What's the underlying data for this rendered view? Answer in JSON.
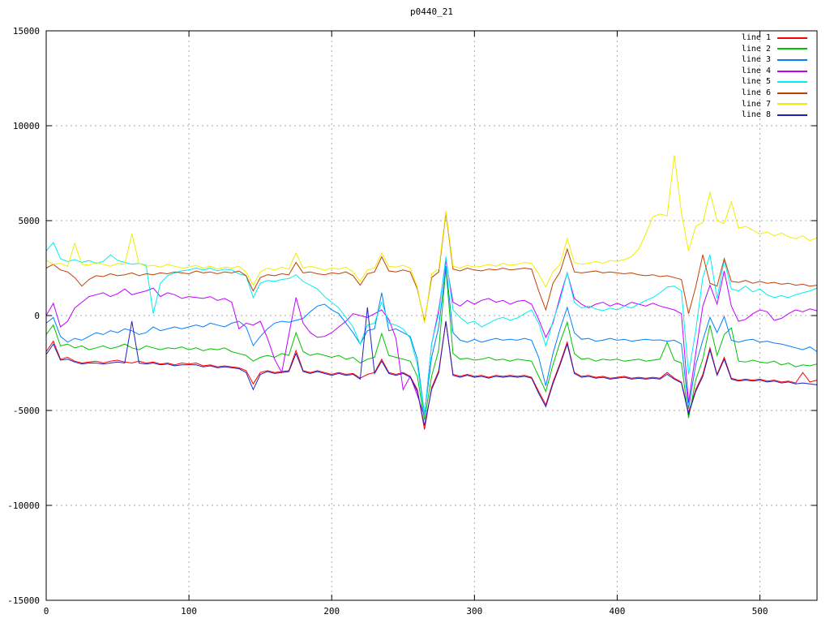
{
  "title": "p0440_21",
  "colors": {
    "background": "#ffffff",
    "border": "#000000",
    "grid": "#a8a8a8"
  },
  "chart_data": {
    "type": "line",
    "title": "p0440_21",
    "xlabel": "",
    "ylabel": "",
    "xlim": [
      0,
      540
    ],
    "ylim": [
      -15000,
      15000
    ],
    "xticks": [
      0,
      100,
      200,
      300,
      400,
      500
    ],
    "yticks": [
      -15000,
      -10000,
      -5000,
      0,
      5000,
      10000,
      15000
    ],
    "grid": true,
    "legend_position": "top-right",
    "x_start": 0,
    "x_step": 5,
    "series": [
      {
        "name": "line 1",
        "color": "#ff0000",
        "values": [
          -1900,
          -1350,
          -2300,
          -2200,
          -2400,
          -2500,
          -2450,
          -2400,
          -2500,
          -2400,
          -2350,
          -2450,
          -2500,
          -2400,
          -2500,
          -2450,
          -2550,
          -2500,
          -2600,
          -2500,
          -2550,
          -2500,
          -2650,
          -2600,
          -2700,
          -2650,
          -2700,
          -2750,
          -2900,
          -3600,
          -3000,
          -2900,
          -3000,
          -2950,
          -2900,
          -1840,
          -2900,
          -3000,
          -2900,
          -3000,
          -3100,
          -3000,
          -3100,
          -3050,
          -3300,
          -3100,
          -3000,
          -2300,
          -3000,
          -3100,
          -3000,
          -3200,
          -3900,
          -6000,
          -3800,
          -2900,
          -300,
          -3100,
          -3200,
          -3100,
          -3200,
          -3150,
          -3250,
          -3150,
          -3200,
          -3150,
          -3200,
          -3150,
          -3250,
          -4000,
          -4700,
          -3500,
          -2500,
          -1400,
          -3000,
          -3200,
          -3150,
          -3250,
          -3200,
          -3300,
          -3250,
          -3200,
          -3300,
          -3250,
          -3300,
          -3250,
          -3300,
          -3000,
          -3300,
          -3500,
          -5100,
          -3900,
          -3100,
          -1700,
          -3100,
          -2200,
          -3300,
          -3400,
          -3350,
          -3400,
          -3350,
          -3450,
          -3400,
          -3500,
          -3450,
          -3550,
          -3000,
          -3500,
          -3400
        ]
      },
      {
        "name": "line 2",
        "color": "#00c000",
        "values": [
          -1000,
          -500,
          -1600,
          -1500,
          -1700,
          -1600,
          -1800,
          -1700,
          -1600,
          -1750,
          -1650,
          -1500,
          -1700,
          -1800,
          -1600,
          -1700,
          -1800,
          -1700,
          -1750,
          -1650,
          -1800,
          -1700,
          -1850,
          -1750,
          -1800,
          -1700,
          -1900,
          -2000,
          -2100,
          -2400,
          -2200,
          -2100,
          -2200,
          -2000,
          -2100,
          -900,
          -1900,
          -2100,
          -2000,
          -2100,
          -2200,
          -2100,
          -2300,
          -2200,
          -2500,
          -2300,
          -2200,
          -950,
          -2100,
          -2200,
          -2300,
          -2400,
          -3200,
          -5500,
          -3200,
          -1800,
          2500,
          -2000,
          -2300,
          -2250,
          -2350,
          -2300,
          -2200,
          -2350,
          -2300,
          -2400,
          -2300,
          -2350,
          -2400,
          -3200,
          -4000,
          -2600,
          -1400,
          -350,
          -2000,
          -2300,
          -2250,
          -2400,
          -2300,
          -2350,
          -2300,
          -2400,
          -2350,
          -2300,
          -2400,
          -2350,
          -2300,
          -1400,
          -2350,
          -2500,
          -5400,
          -3400,
          -2300,
          -500,
          -2100,
          -1000,
          -650,
          -2400,
          -2450,
          -2350,
          -2450,
          -2500,
          -2400,
          -2600,
          -2500,
          -2700,
          -2600,
          -2650,
          -2550
        ]
      },
      {
        "name": "line 3",
        "color": "#0080ff",
        "values": [
          -400,
          -100,
          -1100,
          -1400,
          -1200,
          -1300,
          -1100,
          -900,
          -1000,
          -800,
          -900,
          -700,
          -800,
          -1000,
          -900,
          -600,
          -800,
          -700,
          -600,
          -700,
          -600,
          -500,
          -600,
          -400,
          -500,
          -600,
          -400,
          -300,
          -600,
          -1580,
          -1100,
          -700,
          -400,
          -300,
          -350,
          -250,
          -150,
          200,
          500,
          600,
          300,
          100,
          -400,
          -900,
          -1500,
          -800,
          -700,
          1200,
          -800,
          -700,
          -900,
          -1100,
          -2300,
          -5200,
          -2200,
          -600,
          2600,
          -900,
          -1300,
          -1400,
          -1250,
          -1400,
          -1300,
          -1200,
          -1300,
          -1250,
          -1300,
          -1200,
          -1300,
          -2200,
          -3700,
          -2000,
          -700,
          430,
          -900,
          -1250,
          -1200,
          -1350,
          -1300,
          -1200,
          -1300,
          -1250,
          -1350,
          -1300,
          -1250,
          -1300,
          -1280,
          -1350,
          -1300,
          -1500,
          -4900,
          -2600,
          -1300,
          -100,
          -900,
          -50,
          -1300,
          -1400,
          -1300,
          -1250,
          -1400,
          -1350,
          -1450,
          -1500,
          -1600,
          -1700,
          -1800,
          -1650,
          -1900
        ]
      },
      {
        "name": "line 4",
        "color": "#c000ff",
        "values": [
          0,
          650,
          -600,
          -300,
          400,
          700,
          1000,
          1100,
          1200,
          1000,
          1150,
          1400,
          1100,
          1200,
          1300,
          1450,
          1000,
          1200,
          1100,
          900,
          1000,
          950,
          900,
          1000,
          800,
          900,
          700,
          -700,
          -400,
          -500,
          -300,
          -1200,
          -2300,
          -3000,
          -1000,
          950,
          -400,
          -900,
          -1150,
          -1100,
          -900,
          -600,
          -300,
          100,
          0,
          -100,
          100,
          300,
          -200,
          -1200,
          -3900,
          -3200,
          -4200,
          -5300,
          -1500,
          300,
          2900,
          700,
          500,
          800,
          600,
          800,
          900,
          700,
          800,
          600,
          750,
          800,
          600,
          -200,
          -1150,
          -400,
          1000,
          2250,
          900,
          600,
          400,
          600,
          700,
          500,
          650,
          500,
          700,
          600,
          500,
          650,
          500,
          400,
          300,
          100,
          -4600,
          -2000,
          500,
          1600,
          600,
          2350,
          500,
          -300,
          -200,
          100,
          300,
          200,
          -250,
          -150,
          100,
          300,
          200,
          350,
          250
        ]
      },
      {
        "name": "line 5",
        "color": "#00eeee",
        "values": [
          3400,
          3850,
          3000,
          2850,
          2950,
          2800,
          2900,
          2750,
          2850,
          3200,
          2900,
          2800,
          2700,
          2750,
          2650,
          100,
          1700,
          2100,
          2250,
          2350,
          2400,
          2500,
          2400,
          2500,
          2350,
          2450,
          2400,
          2200,
          2100,
          950,
          1700,
          1850,
          1800,
          1900,
          1950,
          2150,
          1800,
          1600,
          1400,
          1000,
          700,
          400,
          -100,
          -600,
          -1500,
          -500,
          -400,
          700,
          -400,
          -500,
          -700,
          -1200,
          -2600,
          -5300,
          -1500,
          100,
          3100,
          300,
          -100,
          -400,
          -300,
          -600,
          -400,
          -200,
          -100,
          -250,
          -130,
          100,
          300,
          -400,
          -1600,
          -300,
          800,
          2250,
          700,
          400,
          500,
          350,
          250,
          400,
          300,
          500,
          400,
          600,
          800,
          950,
          1200,
          1500,
          1550,
          1300,
          -3100,
          -800,
          2000,
          3200,
          900,
          2900,
          1400,
          1300,
          1550,
          1250,
          1400,
          1100,
          950,
          1050,
          950,
          1100,
          1200,
          1300,
          1450
        ]
      },
      {
        "name": "line 6",
        "color": "#c04000",
        "values": [
          2500,
          2700,
          2400,
          2300,
          2000,
          1550,
          1900,
          2100,
          2050,
          2200,
          2100,
          2150,
          2250,
          2100,
          2200,
          2150,
          2250,
          2200,
          2300,
          2250,
          2200,
          2350,
          2250,
          2300,
          2200,
          2300,
          2250,
          2350,
          2100,
          1300,
          2000,
          2150,
          2100,
          2200,
          2150,
          2800,
          2250,
          2300,
          2200,
          2150,
          2250,
          2200,
          2300,
          2100,
          1600,
          2200,
          2300,
          3100,
          2350,
          2300,
          2400,
          2300,
          1400,
          -300,
          2000,
          2300,
          5400,
          2450,
          2350,
          2500,
          2400,
          2350,
          2450,
          2400,
          2500,
          2400,
          2450,
          2500,
          2450,
          1300,
          300,
          1700,
          2300,
          3500,
          2300,
          2250,
          2300,
          2350,
          2250,
          2300,
          2250,
          2200,
          2250,
          2150,
          2100,
          2150,
          2050,
          2100,
          2000,
          1900,
          100,
          1500,
          3200,
          1700,
          1550,
          3000,
          1800,
          1750,
          1850,
          1700,
          1800,
          1700,
          1750,
          1650,
          1700,
          1600,
          1650,
          1550,
          1600
        ]
      },
      {
        "name": "line 7",
        "color": "#eeee00",
        "values": [
          2900,
          2700,
          2750,
          2600,
          3800,
          2700,
          2650,
          2800,
          2700,
          2600,
          2750,
          2700,
          4300,
          2750,
          2600,
          2650,
          2550,
          2700,
          2600,
          2500,
          2550,
          2650,
          2500,
          2600,
          2450,
          2550,
          2500,
          2600,
          2300,
          1600,
          2300,
          2500,
          2400,
          2550,
          2450,
          3300,
          2500,
          2600,
          2500,
          2400,
          2500,
          2450,
          2550,
          2300,
          1800,
          2400,
          2500,
          3300,
          2600,
          2550,
          2650,
          2500,
          1500,
          -400,
          2200,
          2450,
          5500,
          2600,
          2500,
          2650,
          2550,
          2600,
          2700,
          2600,
          2750,
          2650,
          2700,
          2800,
          2750,
          2200,
          1500,
          2300,
          2700,
          4050,
          2800,
          2700,
          2750,
          2850,
          2750,
          2900,
          2850,
          2950,
          3100,
          3500,
          4300,
          5200,
          5350,
          5250,
          8450,
          5400,
          3400,
          4700,
          4900,
          6500,
          5000,
          4850,
          6000,
          4600,
          4700,
          4500,
          4300,
          4400,
          4200,
          4350,
          4150,
          4050,
          4200,
          3950,
          4100
        ]
      },
      {
        "name": "line 8",
        "color": "#2020c0",
        "values": [
          -2050,
          -1500,
          -2350,
          -2300,
          -2450,
          -2550,
          -2500,
          -2500,
          -2550,
          -2500,
          -2450,
          -2500,
          -300,
          -2500,
          -2550,
          -2500,
          -2600,
          -2550,
          -2650,
          -2600,
          -2600,
          -2600,
          -2700,
          -2650,
          -2750,
          -2700,
          -2750,
          -2800,
          -3000,
          -3900,
          -3100,
          -2950,
          -3050,
          -3000,
          -2950,
          -2000,
          -2950,
          -3050,
          -2950,
          -3050,
          -3150,
          -3050,
          -3150,
          -3100,
          -3350,
          430,
          -3050,
          -2400,
          -3050,
          -3150,
          -3050,
          -3250,
          -4000,
          -5800,
          -3900,
          -3000,
          -300,
          -3150,
          -3250,
          -3150,
          -3250,
          -3200,
          -3300,
          -3200,
          -3250,
          -3200,
          -3250,
          -3200,
          -3300,
          -4100,
          -4800,
          -3600,
          -2600,
          -1500,
          -3050,
          -3250,
          -3200,
          -3300,
          -3250,
          -3350,
          -3300,
          -3250,
          -3350,
          -3300,
          -3350,
          -3300,
          -3350,
          -3100,
          -3350,
          -3550,
          -5200,
          -4000,
          -3200,
          -1800,
          -3150,
          -2300,
          -3350,
          -3450,
          -3400,
          -3450,
          -3400,
          -3500,
          -3450,
          -3550,
          -3500,
          -3600,
          -3550,
          -3600,
          -3650
        ]
      }
    ]
  }
}
